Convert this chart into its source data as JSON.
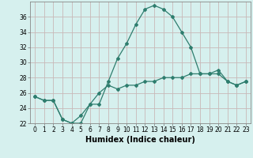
{
  "xlabel": "Humidex (Indice chaleur)",
  "x": [
    0,
    1,
    2,
    3,
    4,
    5,
    6,
    7,
    8,
    9,
    10,
    11,
    12,
    13,
    14,
    15,
    16,
    17,
    18,
    19,
    20,
    21,
    22,
    23
  ],
  "line1": [
    25.5,
    25.0,
    25.0,
    22.5,
    22.0,
    22.0,
    24.5,
    24.5,
    27.5,
    30.5,
    32.5,
    35.0,
    37.0,
    37.5,
    37.0,
    36.0,
    34.0,
    32.0,
    28.5,
    28.5,
    29.0,
    27.5,
    27.0,
    27.5
  ],
  "line2": [
    25.5,
    25.0,
    25.0,
    22.5,
    22.0,
    23.0,
    24.5,
    26.0,
    27.0,
    26.5,
    27.0,
    27.0,
    27.5,
    27.5,
    28.0,
    28.0,
    28.0,
    28.5,
    28.5,
    28.5,
    28.5,
    27.5,
    27.0,
    27.5
  ],
  "line_color": "#2e7d6e",
  "bg_color": "#d6f0ee",
  "grid_color": "#c8b8b8",
  "ylim": [
    22,
    38
  ],
  "yticks": [
    22,
    24,
    26,
    28,
    30,
    32,
    34,
    36
  ],
  "xticks": [
    0,
    1,
    2,
    3,
    4,
    5,
    6,
    7,
    8,
    9,
    10,
    11,
    12,
    13,
    14,
    15,
    16,
    17,
    18,
    19,
    20,
    21,
    22,
    23
  ],
  "xlabel_fontsize": 7,
  "tick_fontsize": 5.5
}
